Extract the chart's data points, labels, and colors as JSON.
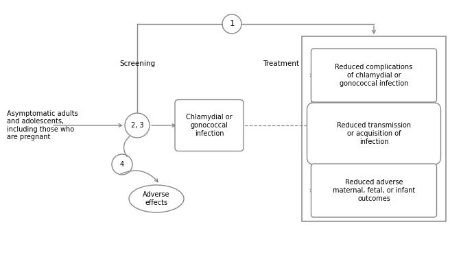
{
  "background_color": "#ffffff",
  "fig_width": 6.72,
  "fig_height": 3.78,
  "population_text": "Asymptomatic adults\nand adolescents,\nincluding those who\nare pregnant",
  "infection_box_text": "Chlamydial or\ngonococcal\ninfection",
  "outcome1_text": "Reduced complications\nof chlamydial or\ngonococcal infection",
  "outcome2_text": "Reduced transmission\nor acquisition of\ninfection",
  "outcome3_text": "Reduced adverse\nmaternal, fetal, or infant\noutcomes",
  "adverse_text": "Adverse\neffects",
  "screening_label": "Screening",
  "treatment_label": "Treatment",
  "kq1_label": "1",
  "kq23_label": "2, 3",
  "kq4_label": "4",
  "gray_color": "#888888",
  "font_size_main": 7.0,
  "font_size_label": 7.5,
  "font_size_kq": 8.5
}
